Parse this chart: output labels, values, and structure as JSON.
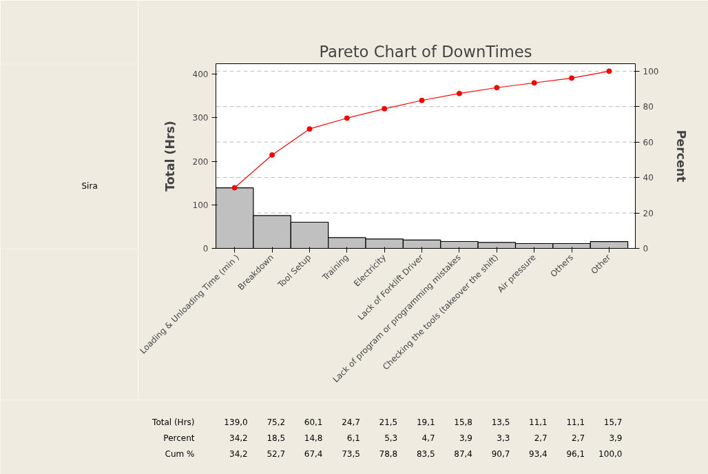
{
  "chart_data": {
    "type": "bar",
    "title": "Pareto Chart of DownTimes",
    "ylabel": "Total (Hrs)",
    "y2label": "Percent",
    "categories": [
      "Loading & Unloading Time (min )",
      "Breakdown",
      "Tool Setup",
      "Training",
      "Electricity",
      "Lack of Forklift Driver",
      "Lack of program or programming mistakes",
      "Checking the tools (takeover the shift)",
      "Air pressure",
      "Others",
      "Other"
    ],
    "series": [
      {
        "color": "#c0c0c0",
        "values": [
          139.0,
          75.2,
          60.1,
          24.7,
          21.5,
          19.1,
          15.8,
          13.5,
          11.1,
          11.1,
          15.7
        ],
        "value_labels": [
          "139,0",
          "75,2",
          "60,1",
          "24,7",
          "21,5",
          "19,1",
          "15,8",
          "13,5",
          "11,1",
          "11,1",
          "15,7"
        ]
      },
      {
        "type": "line",
        "axis": "y2",
        "color": "#ff0000",
        "values": [
          34.2,
          52.7,
          67.4,
          73.5,
          78.8,
          83.5,
          87.4,
          90.7,
          93.4,
          96.1,
          100.0
        ],
        "value_labels": [
          "34,2",
          "52,7",
          "67,4",
          "73,5",
          "78,8",
          "83,5",
          "87,4",
          "90,7",
          "93,4",
          "96,1",
          "100,0"
        ]
      }
    ],
    "marker": "circle",
    "line_style": "solid",
    "ylim": [
      0,
      424
    ],
    "yticks": [
      0,
      100,
      200,
      300,
      400
    ],
    "y2lim": [
      0,
      104.2
    ],
    "y2ticks": [
      0,
      20,
      40,
      60,
      80,
      100
    ],
    "grid": "y2",
    "annotations": [
      "Sira",
      "Total (Hrs)",
      "Percent",
      "Cum %",
      "34,2",
      "18,5",
      "14,8",
      "6,1",
      "5,3",
      "4,7",
      "3,9",
      "3,3",
      "2,7",
      "2,7",
      "3,9"
    ]
  }
}
